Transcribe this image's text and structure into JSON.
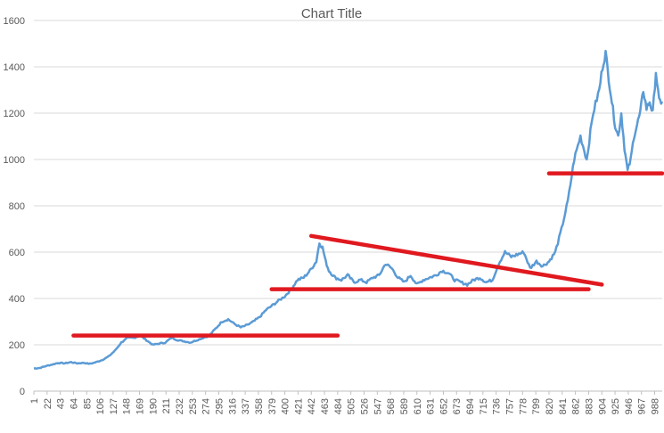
{
  "chart_data": {
    "type": "line",
    "title": "Chart Title",
    "xlabel": "",
    "ylabel": "",
    "ylim": [
      0,
      1600
    ],
    "xlim": [
      1,
      1000
    ],
    "y_ticks": [
      0,
      200,
      400,
      600,
      800,
      1000,
      1200,
      1400,
      1600
    ],
    "x_tick_labels": [
      "1",
      "22",
      "43",
      "64",
      "85",
      "106",
      "127",
      "148",
      "169",
      "190",
      "211",
      "232",
      "253",
      "274",
      "295",
      "316",
      "337",
      "358",
      "379",
      "400",
      "421",
      "442",
      "463",
      "484",
      "505",
      "526",
      "547",
      "568",
      "589",
      "610",
      "631",
      "652",
      "673",
      "694",
      "715",
      "736",
      "757",
      "778",
      "799",
      "820",
      "841",
      "862",
      "883",
      "904",
      "925",
      "946",
      "967",
      "988"
    ],
    "grid": "horizontal",
    "legend": "none",
    "series": [
      {
        "color": "#5B9BD5",
        "x": [
          1,
          10,
          20,
          30,
          40,
          50,
          60,
          70,
          80,
          90,
          100,
          110,
          120,
          130,
          140,
          150,
          160,
          170,
          180,
          190,
          200,
          210,
          220,
          230,
          240,
          250,
          260,
          270,
          280,
          290,
          300,
          310,
          320,
          330,
          340,
          350,
          360,
          370,
          380,
          390,
          400,
          410,
          420,
          430,
          440,
          450,
          455,
          460,
          465,
          470,
          480,
          490,
          500,
          510,
          520,
          530,
          540,
          550,
          560,
          570,
          580,
          590,
          600,
          610,
          620,
          630,
          640,
          650,
          660,
          670,
          680,
          690,
          700,
          710,
          720,
          730,
          740,
          750,
          760,
          770,
          780,
          790,
          800,
          810,
          820,
          830,
          840,
          850,
          860,
          870,
          880,
          890,
          900,
          905,
          910,
          915,
          920,
          925,
          930,
          935,
          940,
          945,
          950,
          955,
          960,
          965,
          970,
          975,
          980,
          985,
          990,
          995,
          1000
        ],
        "y": [
          98,
          100,
          108,
          115,
          122,
          120,
          125,
          120,
          122,
          118,
          125,
          135,
          150,
          175,
          210,
          230,
          230,
          240,
          220,
          200,
          205,
          210,
          230,
          220,
          215,
          210,
          220,
          230,
          240,
          270,
          300,
          310,
          290,
          275,
          285,
          300,
          320,
          350,
          370,
          390,
          410,
          440,
          480,
          490,
          520,
          560,
          640,
          620,
          560,
          520,
          490,
          480,
          500,
          470,
          480,
          470,
          490,
          500,
          550,
          530,
          490,
          470,
          500,
          460,
          480,
          490,
          500,
          520,
          510,
          480,
          470,
          460,
          480,
          490,
          470,
          480,
          550,
          600,
          580,
          590,
          600,
          530,
          560,
          540,
          560,
          600,
          700,
          820,
          1000,
          1100,
          1000,
          1200,
          1300,
          1400,
          1460,
          1350,
          1250,
          1150,
          1100,
          1200,
          1050,
          950,
          1000,
          1100,
          1150,
          1200,
          1300,
          1220,
          1250,
          1200,
          1380,
          1250,
          1250
        ]
      }
    ],
    "annotations": [
      {
        "type": "line",
        "color": "#E0191F",
        "x1": 64,
        "y1": 240,
        "x2": 484,
        "y2": 240
      },
      {
        "type": "line",
        "color": "#E0191F",
        "x1": 379,
        "y1": 440,
        "x2": 883,
        "y2": 440
      },
      {
        "type": "line",
        "color": "#E0191F",
        "x1": 442,
        "y1": 670,
        "x2": 904,
        "y2": 460
      },
      {
        "type": "line",
        "color": "#E0191F",
        "x1": 820,
        "y1": 940,
        "x2": 1000,
        "y2": 940
      }
    ]
  }
}
